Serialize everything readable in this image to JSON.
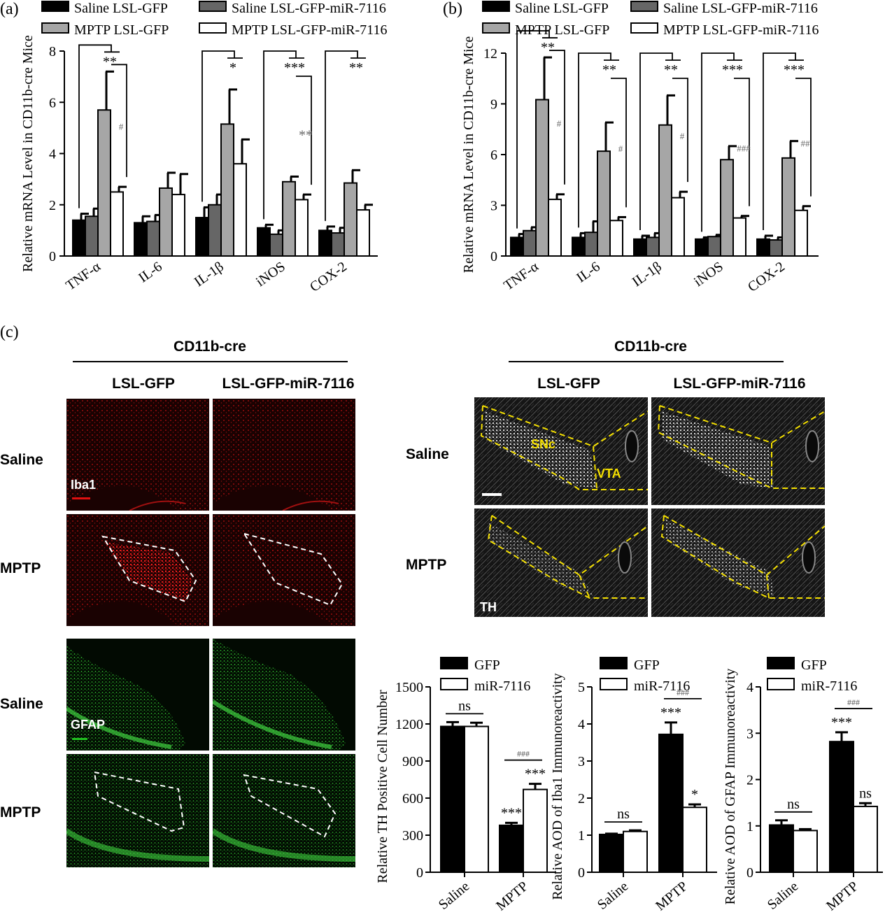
{
  "panel_labels": {
    "a": "(a)",
    "b": "(b)",
    "c": "(c)"
  },
  "colors": {
    "black": "#000000",
    "dark_gray": "#666666",
    "light_gray": "#a6a6a6",
    "white": "#ffffff",
    "iba1_red": "#e01010",
    "gfap_green": "#20c020",
    "th_white": "#e8e8e8",
    "region_outline_yellow": "#f5e000"
  },
  "imaging": {
    "left_header": "CD11b-cre",
    "left_columns": [
      "LSL-GFP",
      "LSL-GFP-miR-7116"
    ],
    "right_header": "CD11b-cre",
    "right_columns": [
      "LSL-GFP",
      "LSL-GFP-miR-7116"
    ],
    "rows_iba1": [
      "Saline",
      "MPTP"
    ],
    "rows_gfap": [
      "Saline",
      "MPTP"
    ],
    "rows_th": [
      "Saline",
      "MPTP"
    ],
    "labels": {
      "iba1": "Iba1",
      "gfap": "GFAP",
      "th": "TH",
      "snc": "SNc",
      "vta": "VTA"
    }
  },
  "chart_data": [
    {
      "id": "a",
      "type": "bar",
      "ylabel": "Relative mRNA Level in CD11b-cre Mice",
      "ylim": [
        0,
        8
      ],
      "yticks": [
        "0",
        "2",
        "4",
        "6",
        "8"
      ],
      "legend_position": "top",
      "categories": [
        "TNF-α",
        "IL-6",
        "IL-1β",
        "iNOS",
        "COX-2"
      ],
      "series": [
        {
          "name": "Saline LSL-GFP",
          "color": "#000000",
          "values": [
            1.4,
            1.3,
            1.5,
            1.1,
            1.0
          ],
          "errors": [
            0.25,
            0.25,
            0.4,
            0.12,
            0.15
          ]
        },
        {
          "name": "Saline LSL-GFP-miR-7116",
          "color": "#666666",
          "values": [
            1.55,
            1.35,
            2.0,
            0.85,
            0.9
          ],
          "errors": [
            0.3,
            0.25,
            0.4,
            0.15,
            0.2
          ]
        },
        {
          "name": "MPTP LSL-GFP",
          "color": "#a6a6a6",
          "values": [
            5.7,
            2.65,
            5.15,
            2.9,
            2.85
          ],
          "errors": [
            1.5,
            0.6,
            1.35,
            0.2,
            0.5
          ]
        },
        {
          "name": "MPTP LSL-GFP-miR-7116",
          "color": "#ffffff",
          "values": [
            2.5,
            2.4,
            3.6,
            2.2,
            1.8
          ],
          "errors": [
            0.2,
            0.8,
            0.95,
            0.2,
            0.2
          ]
        }
      ],
      "annotations": [
        {
          "cat": 0,
          "upper": "**",
          "lower": "#"
        },
        {
          "cat": 2,
          "upper": "*",
          "lower": ""
        },
        {
          "cat": 3,
          "upper": "***",
          "lower": "**"
        },
        {
          "cat": 4,
          "upper": "**",
          "lower": ""
        }
      ]
    },
    {
      "id": "b",
      "type": "bar",
      "ylabel": "Relative mRNA Level in CD11b-cre Mice",
      "ylim": [
        0,
        12
      ],
      "yticks": [
        "0",
        "3",
        "6",
        "9",
        "12"
      ],
      "legend_position": "top",
      "categories": [
        "TNF-α",
        "IL-6",
        "IL-1β",
        "iNOS",
        "COX-2"
      ],
      "series": [
        {
          "name": "Saline LSL-GFP",
          "color": "#000000",
          "values": [
            1.1,
            1.1,
            1.0,
            1.0,
            1.0
          ],
          "errors": [
            0.2,
            0.25,
            0.2,
            0.1,
            0.2
          ]
        },
        {
          "name": "Saline LSL-GFP-miR-7116",
          "color": "#666666",
          "values": [
            1.5,
            1.4,
            1.1,
            1.15,
            0.95
          ],
          "errors": [
            0.2,
            0.65,
            0.25,
            0.1,
            0.15
          ]
        },
        {
          "name": "MPTP LSL-GFP",
          "color": "#a6a6a6",
          "values": [
            9.25,
            6.2,
            7.75,
            5.7,
            5.8
          ],
          "errors": [
            2.5,
            1.7,
            1.75,
            0.8,
            1.0
          ]
        },
        {
          "name": "MPTP LSL-GFP-miR-7116",
          "color": "#ffffff",
          "values": [
            3.35,
            2.1,
            3.45,
            2.25,
            2.7
          ],
          "errors": [
            0.3,
            0.2,
            0.35,
            0.12,
            0.25
          ]
        }
      ],
      "annotations": [
        {
          "cat": 0,
          "upper": "**",
          "lower": "#"
        },
        {
          "cat": 1,
          "upper": "**",
          "lower": "#"
        },
        {
          "cat": 2,
          "upper": "**",
          "lower": "#"
        },
        {
          "cat": 3,
          "upper": "***",
          "lower": "###"
        },
        {
          "cat": 4,
          "upper": "***",
          "lower": "##"
        }
      ]
    },
    {
      "id": "th",
      "type": "bar",
      "ylabel": "Relative TH Positive Cell Number",
      "ylim": [
        0,
        1500
      ],
      "yticks": [
        "0",
        "300",
        "600",
        "900",
        "1200",
        "1500"
      ],
      "legend_position": "top-right",
      "categories": [
        "Saline",
        "MPTP"
      ],
      "series": [
        {
          "name": "GFP",
          "color": "#000000",
          "values": [
            1180,
            380
          ],
          "errors": [
            35,
            20
          ]
        },
        {
          "name": "miR-7116",
          "color": "#ffffff",
          "values": [
            1180,
            670
          ],
          "errors": [
            30,
            45
          ]
        }
      ],
      "annotations": [
        {
          "cat": 0,
          "pair": "ns"
        },
        {
          "cat": 1,
          "s1": "***",
          "s2": "***",
          "pair": "###"
        }
      ]
    },
    {
      "id": "iba1",
      "type": "bar",
      "ylabel": "Relative AOD of Iba1 Immunoreactivity",
      "ylim": [
        0,
        5
      ],
      "yticks": [
        "0",
        "1",
        "2",
        "3",
        "4",
        "5"
      ],
      "legend_position": "top-right",
      "categories": [
        "Saline",
        "MPTP"
      ],
      "series": [
        {
          "name": "GFP",
          "color": "#000000",
          "values": [
            1.02,
            3.72
          ],
          "errors": [
            0.02,
            0.32
          ]
        },
        {
          "name": "miR-7116",
          "color": "#ffffff",
          "values": [
            1.1,
            1.75
          ],
          "errors": [
            0.03,
            0.08
          ]
        }
      ],
      "annotations": [
        {
          "cat": 0,
          "pair": "ns"
        },
        {
          "cat": 1,
          "s1": "***",
          "s2": "*",
          "pair": "###"
        }
      ]
    },
    {
      "id": "gfap",
      "type": "bar",
      "ylabel": "Relative AOD of GFAP Immunoreactivity",
      "ylim": [
        0,
        4
      ],
      "yticks": [
        "0",
        "1",
        "2",
        "3",
        "4"
      ],
      "legend_position": "top-right",
      "categories": [
        "Saline",
        "MPTP"
      ],
      "series": [
        {
          "name": "GFP",
          "color": "#000000",
          "values": [
            1.02,
            2.82
          ],
          "errors": [
            0.1,
            0.2
          ]
        },
        {
          "name": "miR-7116",
          "color": "#ffffff",
          "values": [
            0.9,
            1.42
          ],
          "errors": [
            0.03,
            0.07
          ]
        }
      ],
      "annotations": [
        {
          "cat": 0,
          "pair": "ns"
        },
        {
          "cat": 1,
          "s1": "***",
          "s2": "ns",
          "pair": "###"
        }
      ]
    }
  ]
}
